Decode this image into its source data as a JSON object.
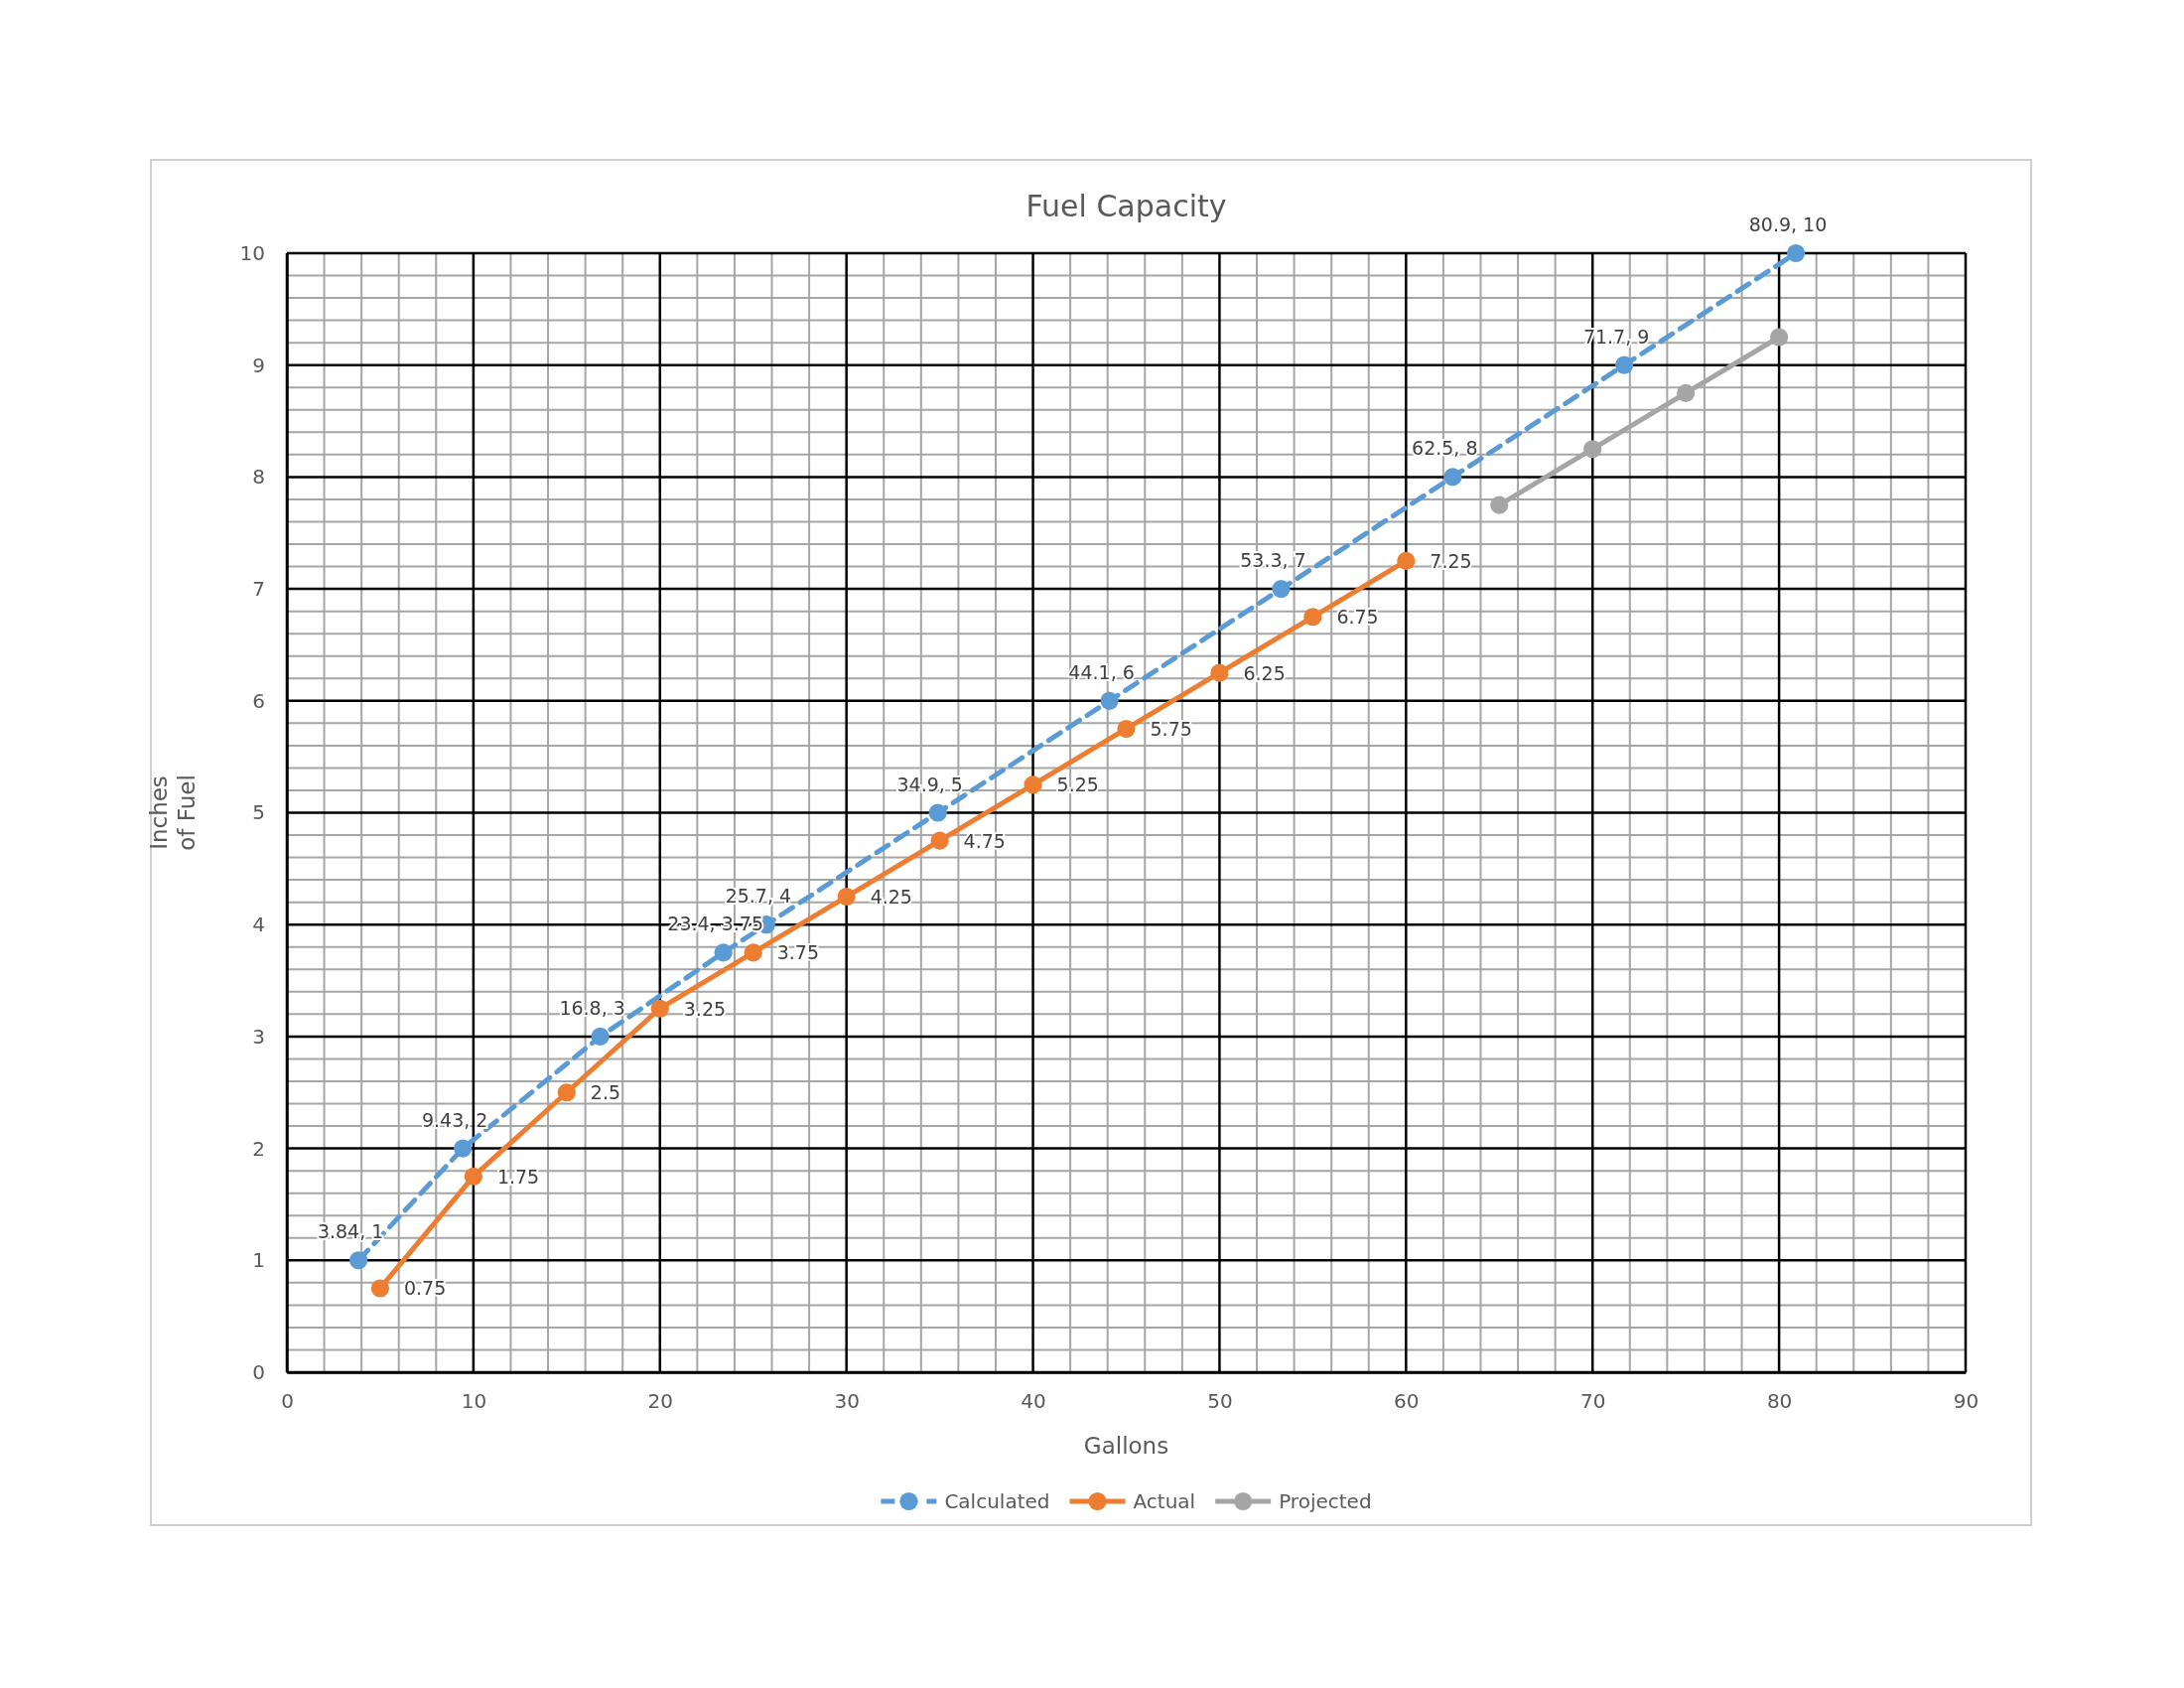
{
  "chart_data": {
    "type": "line",
    "title": "Fuel Capacity",
    "xlabel": "Gallons",
    "ylabel": "Inches of Fuel",
    "xlim": [
      0,
      90
    ],
    "xticks": [
      0,
      10,
      20,
      30,
      40,
      50,
      60,
      70,
      80,
      90
    ],
    "ylim": [
      0,
      10
    ],
    "yticks": [
      0,
      1,
      2,
      3,
      4,
      5,
      6,
      7,
      8,
      9,
      10
    ],
    "grid": true,
    "legend": "bottom",
    "marker": "circle",
    "series": [
      {
        "name": "Calculated",
        "color": "#5b9bd5",
        "line_style": "dashed",
        "x": [
          3.84,
          9.43,
          16.8,
          23.4,
          25.7,
          34.9,
          44.1,
          53.3,
          62.5,
          71.7,
          80.9
        ],
        "values": [
          1,
          2,
          3,
          3.75,
          4,
          5,
          6,
          7,
          8,
          9,
          10
        ],
        "value_labels": [
          "3.84, 1",
          "9.43, 2",
          "16.8, 3",
          "23.4, 3.75",
          "25.7, 4",
          "34.9, 5",
          "44.1, 6",
          "53.3, 7",
          "62.5, 8",
          "71.7, 9",
          "80.9, 10"
        ]
      },
      {
        "name": "Actual",
        "color": "#ed7d31",
        "line_style": "solid",
        "x": [
          5,
          10,
          15,
          20,
          25,
          30,
          35,
          40,
          45,
          50,
          55,
          60
        ],
        "values": [
          0.75,
          1.75,
          2.5,
          3.25,
          3.75,
          4.25,
          4.75,
          5.25,
          5.75,
          6.25,
          6.75,
          7.25
        ],
        "value_labels": [
          "0.75",
          "1.75",
          "2.5",
          "3.25",
          "3.75",
          "4.25",
          "4.75",
          "5.25",
          "5.75",
          "6.25",
          "6.75",
          "7.25"
        ]
      },
      {
        "name": "Projected",
        "color": "#a5a5a5",
        "line_style": "solid",
        "x": [
          65,
          70,
          75,
          80
        ],
        "values": [
          7.75,
          8.25,
          8.75,
          9.25
        ]
      }
    ]
  }
}
